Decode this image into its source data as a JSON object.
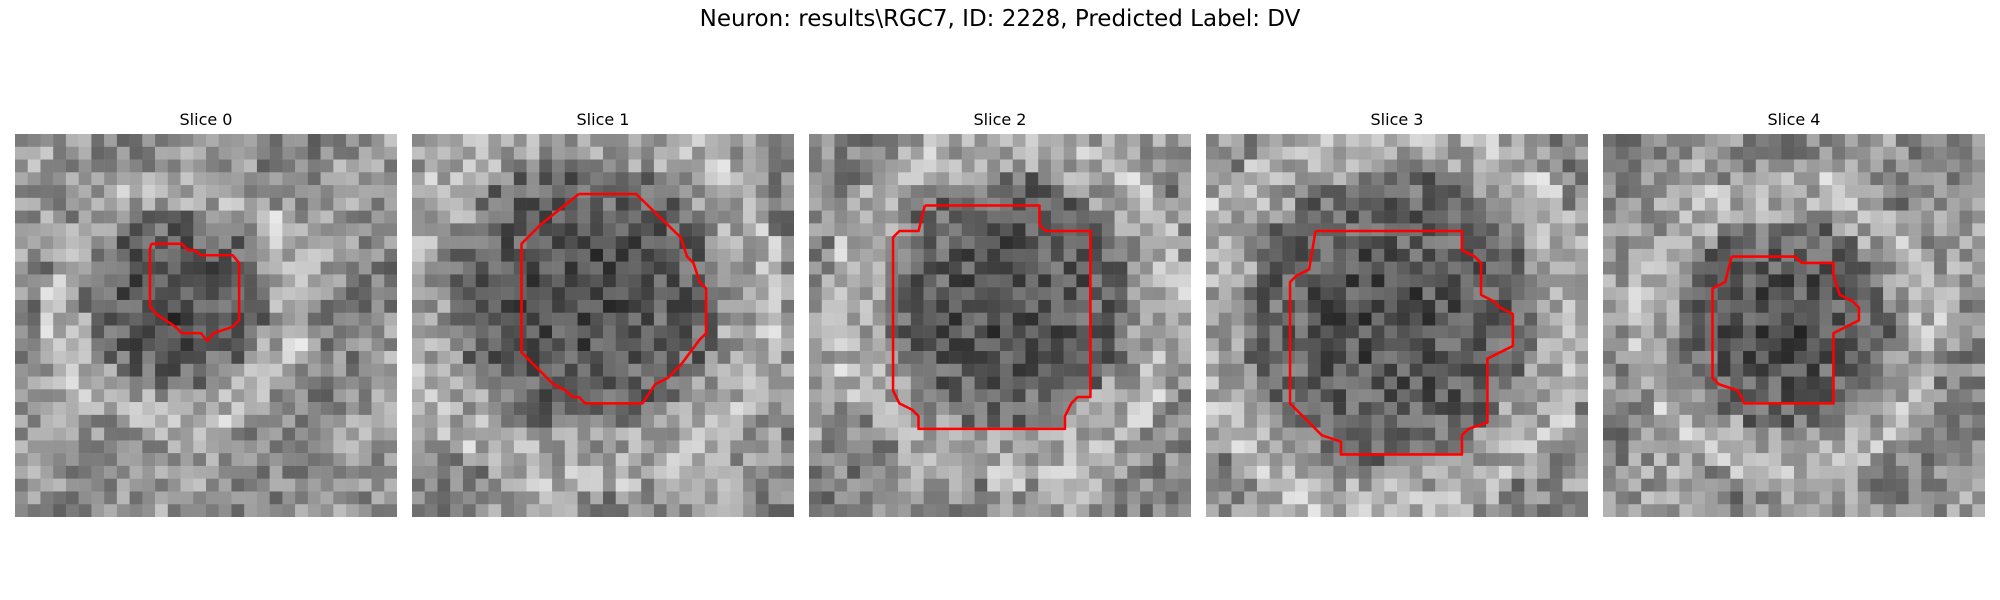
{
  "figure": {
    "title": "Neuron: results\\RGC7, ID: 2228, Predicted Label: DV",
    "contour_color": "#ff0000"
  },
  "slices": [
    {
      "title": "Slice 0",
      "seed": 11,
      "dark_center": [
        0.42,
        0.44
      ],
      "dark_radius": 0.24,
      "bright_band": 0.8
    },
    {
      "title": "Slice 1",
      "seed": 23,
      "dark_center": [
        0.45,
        0.42
      ],
      "dark_radius": 0.36,
      "bright_band": 0.85
    },
    {
      "title": "Slice 2",
      "seed": 37,
      "dark_center": [
        0.52,
        0.44
      ],
      "dark_radius": 0.33,
      "bright_band": 0.9
    },
    {
      "title": "Slice 3",
      "seed": 41,
      "dark_center": [
        0.48,
        0.48
      ],
      "dark_radius": 0.38,
      "bright_band": 0.85
    },
    {
      "title": "Slice 4",
      "seed": 53,
      "dark_center": [
        0.48,
        0.5
      ],
      "dark_radius": 0.28,
      "bright_band": 0.9
    }
  ]
}
